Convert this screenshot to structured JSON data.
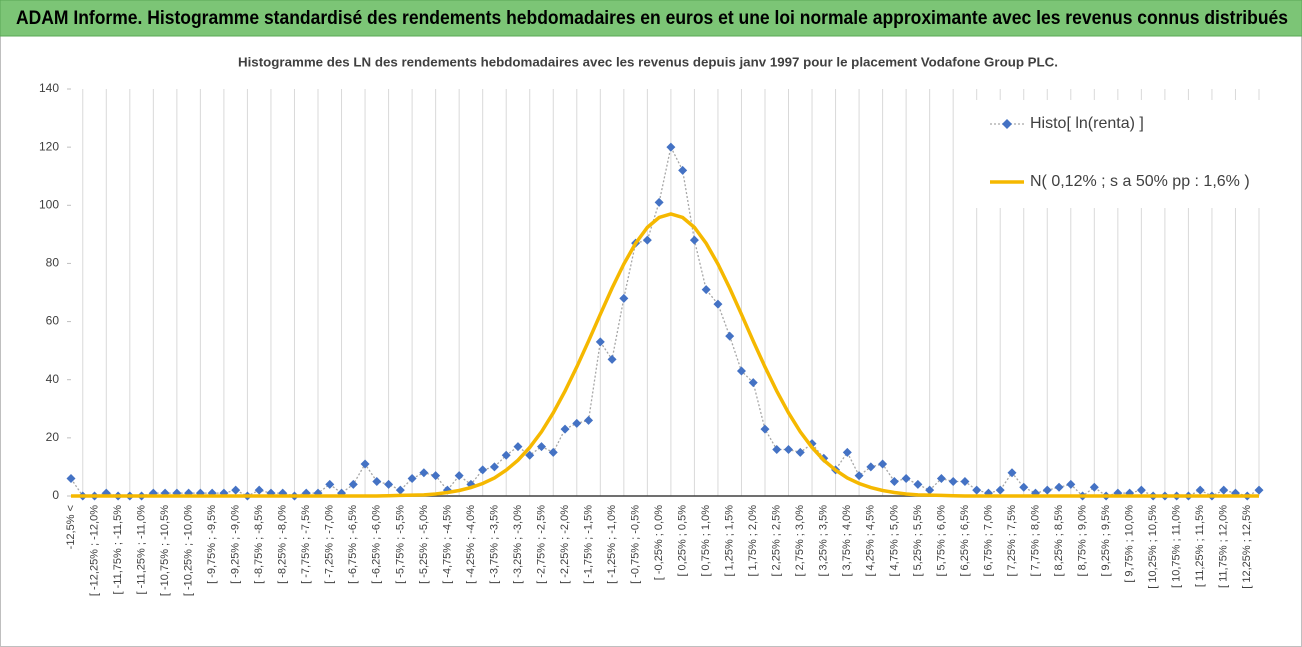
{
  "chart_data": {
    "type": "line",
    "title": "ADAM Informe. Histogramme standardisé des rendements hebdomadaires en euros et une loi normale approximante avec les revenus connus distribués",
    "subtitle": "Histogramme  des LN des rendements hebdomadaires avec les revenus depuis janv 1997 pour le placement Vodafone Group PLC.",
    "categories": [
      "-12,5% <",
      null,
      "[ -12,25% ; -12,0%",
      null,
      "[ -11,75% ; -11,5%",
      null,
      "[ -11,25% ; -11,0%",
      null,
      "[ -10,75% ; -10,5%",
      null,
      "[ -10,25% ; -10,0%",
      null,
      "[ -9,75% ; -9,5%",
      null,
      "[ -9,25% ; -9,0%",
      null,
      "[ -8,75% ; -8,5%",
      null,
      "[ -8,25% ; -8,0%",
      null,
      "[ -7,75% ; -7,5%",
      null,
      "[ -7,25% ; -7,0%",
      null,
      "[ -6,75% ; -6,5%",
      null,
      "[ -6,25% ; -6,0%",
      null,
      "[ -5,75% ; -5,5%",
      null,
      "[ -5,25% ; -5,0%",
      null,
      "[ -4,75% ; -4,5%",
      null,
      "[ -4,25% ; -4,0%",
      null,
      "[ -3,75% ; -3,5%",
      null,
      "[ -3,25% ; -3,0%",
      null,
      "[ -2,75% ; -2,5%",
      null,
      "[ -2,25% ; -2,0%",
      null,
      "[ -1,75% ; -1,5%",
      null,
      "[ -1,25% ; -1,0%",
      null,
      "[ -0,75% ; -0,5%",
      null,
      "[ -0,25% ; 0,0%",
      null,
      "[ 0,25% ; 0,5%",
      null,
      "[ 0,75% ; 1,0%",
      null,
      "[ 1,25% ; 1,5%",
      null,
      "[ 1,75% ; 2,0%",
      null,
      "[ 2,25% ; 2,5%",
      null,
      "[ 2,75% ; 3,0%",
      null,
      "[ 3,25% ; 3,5%",
      null,
      "[ 3,75% ; 4,0%",
      null,
      "[ 4,25% ; 4,5%",
      null,
      "[ 4,75% ; 5,0%",
      null,
      "[ 5,25% ; 5,5%",
      null,
      "[ 5,75% ; 6,0%",
      null,
      "[ 6,25% ; 6,5%",
      null,
      "[ 6,75% ; 7,0%",
      null,
      "[ 7,25% ; 7,5%",
      null,
      "[ 7,75% ; 8,0%",
      null,
      "[ 8,25% ; 8,5%",
      null,
      "[ 8,75% ; 9,0%",
      null,
      "[ 9,25% ; 9,5%",
      null,
      "[ 9,75% ; 10,0%",
      null,
      "[ 10,25% ; 10,5%",
      null,
      "[ 10,75% ; 11,0%",
      null,
      "[ 11,25% ; 11,5%",
      null,
      "[ 11,75% ; 12,0%",
      null,
      "[ 12,25% ; 12,5%",
      null
    ],
    "series": [
      {
        "name": "Histo[ ln(renta) ]",
        "color": "#4472c4",
        "line_color": "#a6a6a6",
        "line_style": "dotted",
        "marker": "diamond",
        "values": [
          6,
          0,
          0,
          1,
          0,
          0,
          0,
          1,
          1,
          1,
          1,
          1,
          1,
          1,
          2,
          0,
          2,
          1,
          1,
          0,
          1,
          1,
          4,
          1,
          4,
          11,
          5,
          4,
          2,
          6,
          8,
          7,
          2,
          7,
          4,
          9,
          10,
          14,
          17,
          14,
          17,
          15,
          23,
          25,
          26,
          53,
          47,
          68,
          87,
          88,
          101,
          120,
          112,
          88,
          71,
          66,
          55,
          43,
          39,
          23,
          16,
          16,
          15,
          18,
          13,
          9,
          15,
          7,
          10,
          11,
          5,
          6,
          4,
          2,
          6,
          5,
          5,
          2,
          1,
          2,
          8,
          3,
          1,
          2,
          3,
          4,
          0,
          3,
          0,
          1,
          1,
          2,
          0,
          0,
          0,
          0,
          2,
          0,
          2,
          1,
          0,
          2
        ]
      },
      {
        "name": "N( 0,12% ; s a 50% pp : 1,6% )",
        "color": "#f5b800",
        "line_style": "solid",
        "marker": "none",
        "values": [
          0,
          0,
          0,
          0,
          0,
          0,
          0,
          0,
          0,
          0,
          0,
          0,
          0,
          0,
          0,
          0,
          0,
          0,
          0,
          0,
          0,
          0,
          0,
          0,
          0,
          0,
          0,
          0.1,
          0.2,
          0.3,
          0.4,
          0.7,
          1.2,
          1.9,
          2.9,
          4.3,
          6.2,
          8.9,
          12.3,
          16.7,
          22.1,
          28.6,
          36.1,
          44.4,
          53.3,
          62.5,
          71.5,
          79.8,
          86.9,
          92.4,
          95.8,
          97,
          95.8,
          92.4,
          86.9,
          79.8,
          71.5,
          62.5,
          53.3,
          44.4,
          36.1,
          28.6,
          22.1,
          16.7,
          12.3,
          8.9,
          6.2,
          4.3,
          2.9,
          1.9,
          1.2,
          0.7,
          0.4,
          0.3,
          0.2,
          0.1,
          0,
          0,
          0,
          0,
          0,
          0,
          0,
          0,
          0,
          0,
          0,
          0,
          0,
          0,
          0,
          0,
          0,
          0,
          0,
          0,
          0,
          0,
          0,
          0,
          0,
          0
        ]
      }
    ],
    "ylim": [
      0,
      140
    ],
    "yticks": [
      0,
      20,
      40,
      60,
      80,
      100,
      120,
      140
    ],
    "legend": "top-right"
  }
}
